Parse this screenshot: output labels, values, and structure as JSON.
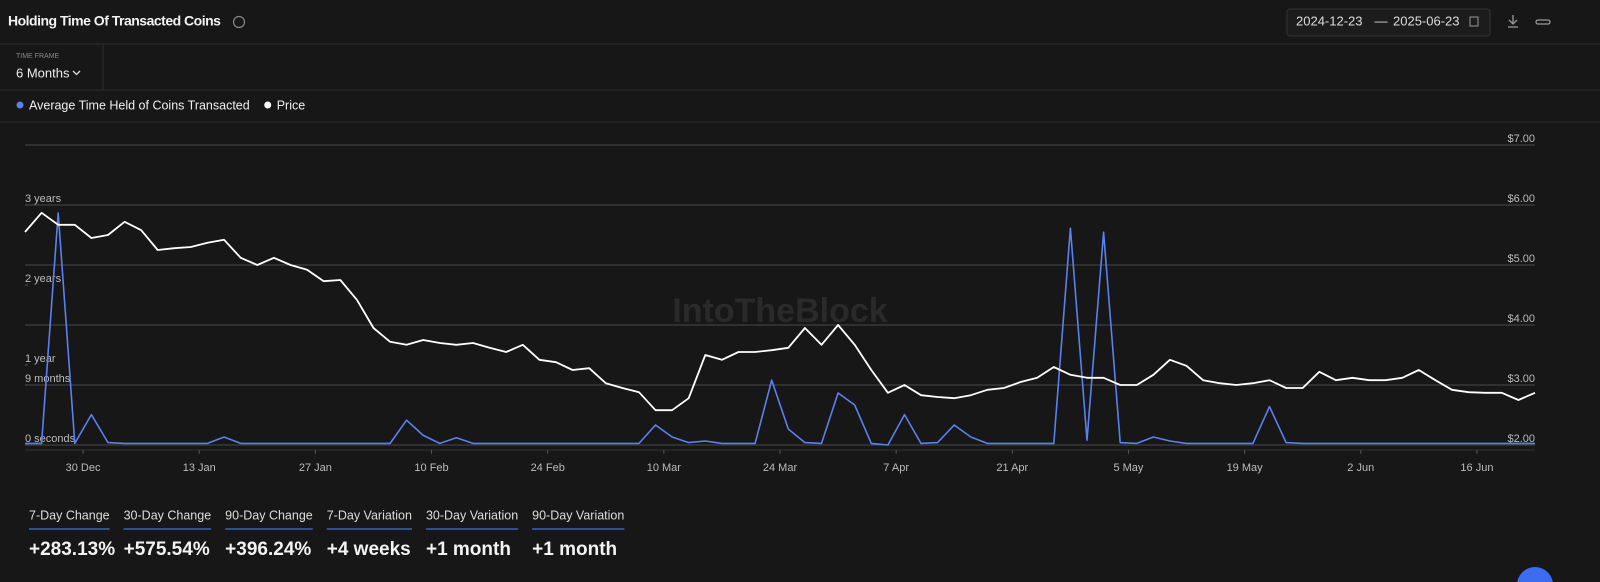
{
  "header": {
    "title": "Holding Time Of Transacted Coins",
    "date_from": "2024-12-23",
    "date_sep": "—",
    "date_to": "2025-06-23",
    "timeframe_label": "TIME FRAME",
    "timeframe": "6 Months"
  },
  "chart_data": {
    "type": "line",
    "watermark": "IntoTheBlock",
    "xlim": [
      "2024-12-23",
      "2025-06-23"
    ],
    "xticks": [
      {
        "value": "2024-12-30",
        "label": "30 Dec"
      },
      {
        "value": "2025-01-13",
        "label": "13 Jan"
      },
      {
        "value": "2025-01-27",
        "label": "27 Jan"
      },
      {
        "value": "2025-02-10",
        "label": "10 Feb"
      },
      {
        "value": "2025-02-24",
        "label": "24 Feb"
      },
      {
        "value": "2025-03-10",
        "label": "10 Mar"
      },
      {
        "value": "2025-03-24",
        "label": "24 Mar"
      },
      {
        "value": "2025-04-07",
        "label": "7 Apr"
      },
      {
        "value": "2025-04-21",
        "label": "21 Apr"
      },
      {
        "value": "2025-05-05",
        "label": "5 May"
      },
      {
        "value": "2025-05-19",
        "label": "19 May"
      },
      {
        "value": "2025-06-02",
        "label": "2 Jun"
      },
      {
        "value": "2025-06-16",
        "label": "16 Jun"
      }
    ],
    "ylim": [
      0,
      3.75
    ],
    "yticks": [
      {
        "value": 0,
        "label": "0 seconds"
      },
      {
        "value": 0.75,
        "label": "9 months"
      },
      {
        "value": 1,
        "label": "1 year"
      },
      {
        "value": 2,
        "label": "2 years"
      },
      {
        "value": 3,
        "label": "3 years"
      }
    ],
    "y2lim": [
      2,
      7
    ],
    "y2ticks": [
      {
        "value": 2,
        "label": "$2.00"
      },
      {
        "value": 3,
        "label": "$3.00"
      },
      {
        "value": 4,
        "label": "$4.00"
      },
      {
        "value": 5,
        "label": "$5.00"
      },
      {
        "value": 6,
        "label": "$6.00"
      },
      {
        "value": 7,
        "label": "$7.00"
      }
    ],
    "grid": true,
    "x": [
      "2024-12-23",
      "2024-12-25",
      "2024-12-27",
      "2024-12-29",
      "2024-12-31",
      "2025-01-02",
      "2025-01-04",
      "2025-01-06",
      "2025-01-08",
      "2025-01-10",
      "2025-01-12",
      "2025-01-14",
      "2025-01-16",
      "2025-01-18",
      "2025-01-20",
      "2025-01-22",
      "2025-01-24",
      "2025-01-26",
      "2025-01-28",
      "2025-01-30",
      "2025-02-01",
      "2025-02-03",
      "2025-02-05",
      "2025-02-07",
      "2025-02-09",
      "2025-02-11",
      "2025-02-13",
      "2025-02-15",
      "2025-02-17",
      "2025-02-19",
      "2025-02-21",
      "2025-02-23",
      "2025-02-25",
      "2025-02-27",
      "2025-03-01",
      "2025-03-03",
      "2025-03-05",
      "2025-03-07",
      "2025-03-09",
      "2025-03-11",
      "2025-03-13",
      "2025-03-15",
      "2025-03-17",
      "2025-03-19",
      "2025-03-21",
      "2025-03-23",
      "2025-03-25",
      "2025-03-27",
      "2025-03-29",
      "2025-03-31",
      "2025-04-02",
      "2025-04-04",
      "2025-04-06",
      "2025-04-08",
      "2025-04-10",
      "2025-04-12",
      "2025-04-14",
      "2025-04-16",
      "2025-04-18",
      "2025-04-20",
      "2025-04-22",
      "2025-04-24",
      "2025-04-26",
      "2025-04-28",
      "2025-04-30",
      "2025-05-02",
      "2025-05-04",
      "2025-05-06",
      "2025-05-08",
      "2025-05-10",
      "2025-05-12",
      "2025-05-14",
      "2025-05-16",
      "2025-05-18",
      "2025-05-20",
      "2025-05-22",
      "2025-05-24",
      "2025-05-26",
      "2025-05-28",
      "2025-05-30",
      "2025-06-01",
      "2025-06-03",
      "2025-06-05",
      "2025-06-07",
      "2025-06-09",
      "2025-06-11",
      "2025-06-13",
      "2025-06-15",
      "2025-06-17",
      "2025-06-19",
      "2025-06-21",
      "2025-06-23"
    ],
    "series": [
      {
        "name": "Average Time Held of Coins Transacted",
        "color": "#5b80f0",
        "values": [
          0.02,
          0.02,
          2.9,
          0.02,
          0.38,
          0.03,
          0.02,
          0.02,
          0.02,
          0.02,
          0.02,
          0.02,
          0.1,
          0.02,
          0.02,
          0.02,
          0.02,
          0.02,
          0.02,
          0.02,
          0.02,
          0.02,
          0.02,
          0.31,
          0.12,
          0.02,
          0.09,
          0.02,
          0.02,
          0.02,
          0.02,
          0.02,
          0.02,
          0.02,
          0.02,
          0.02,
          0.02,
          0.02,
          0.25,
          0.1,
          0.03,
          0.05,
          0.02,
          0.02,
          0.02,
          0.81,
          0.2,
          0.03,
          0.02,
          0.65,
          0.5,
          0.02,
          0.0,
          0.38,
          0.02,
          0.03,
          0.25,
          0.1,
          0.02,
          0.02,
          0.02,
          0.02,
          0.02,
          2.71,
          0.06,
          2.66,
          0.03,
          0.02,
          0.1,
          0.05,
          0.02,
          0.02,
          0.02,
          0.02,
          0.02,
          0.48,
          0.03,
          0.02,
          0.02,
          0.02,
          0.02,
          0.02,
          0.02,
          0.02,
          0.02,
          0.02,
          0.02,
          0.02,
          0.02,
          0.02,
          0.02,
          0.02
        ]
      },
      {
        "name": "Price",
        "color": "#ffffff",
        "axis": "y2",
        "values": [
          5.55,
          5.87,
          5.67,
          5.67,
          5.45,
          5.5,
          5.72,
          5.58,
          5.25,
          5.28,
          5.3,
          5.37,
          5.42,
          5.12,
          5.0,
          5.12,
          5.0,
          4.92,
          4.73,
          4.75,
          4.42,
          3.95,
          3.72,
          3.67,
          3.75,
          3.7,
          3.67,
          3.7,
          3.62,
          3.55,
          3.67,
          3.42,
          3.38,
          3.25,
          3.28,
          3.03,
          2.95,
          2.88,
          2.58,
          2.58,
          2.78,
          3.5,
          3.42,
          3.55,
          3.55,
          3.58,
          3.62,
          3.95,
          3.67,
          4.0,
          3.67,
          3.25,
          2.87,
          3.0,
          2.83,
          2.8,
          2.78,
          2.83,
          2.92,
          2.95,
          3.05,
          3.12,
          3.3,
          3.17,
          3.12,
          3.12,
          3.0,
          3.0,
          3.17,
          3.42,
          3.32,
          3.08,
          3.03,
          3.0,
          3.03,
          3.08,
          2.95,
          2.95,
          3.22,
          3.08,
          3.12,
          3.08,
          3.08,
          3.12,
          3.25,
          3.08,
          2.92,
          2.88,
          2.87,
          2.87,
          2.75,
          2.87
        ]
      }
    ]
  },
  "stats": [
    {
      "label": "7-Day Change",
      "value": "+283.13%"
    },
    {
      "label": "30-Day Change",
      "value": "+575.54%"
    },
    {
      "label": "90-Day Change",
      "value": "+396.24%"
    },
    {
      "label": "7-Day Variation",
      "value": "+4 weeks"
    },
    {
      "label": "30-Day Variation",
      "value": "+1 month"
    },
    {
      "label": "90-Day Variation",
      "value": "+1 month"
    }
  ]
}
